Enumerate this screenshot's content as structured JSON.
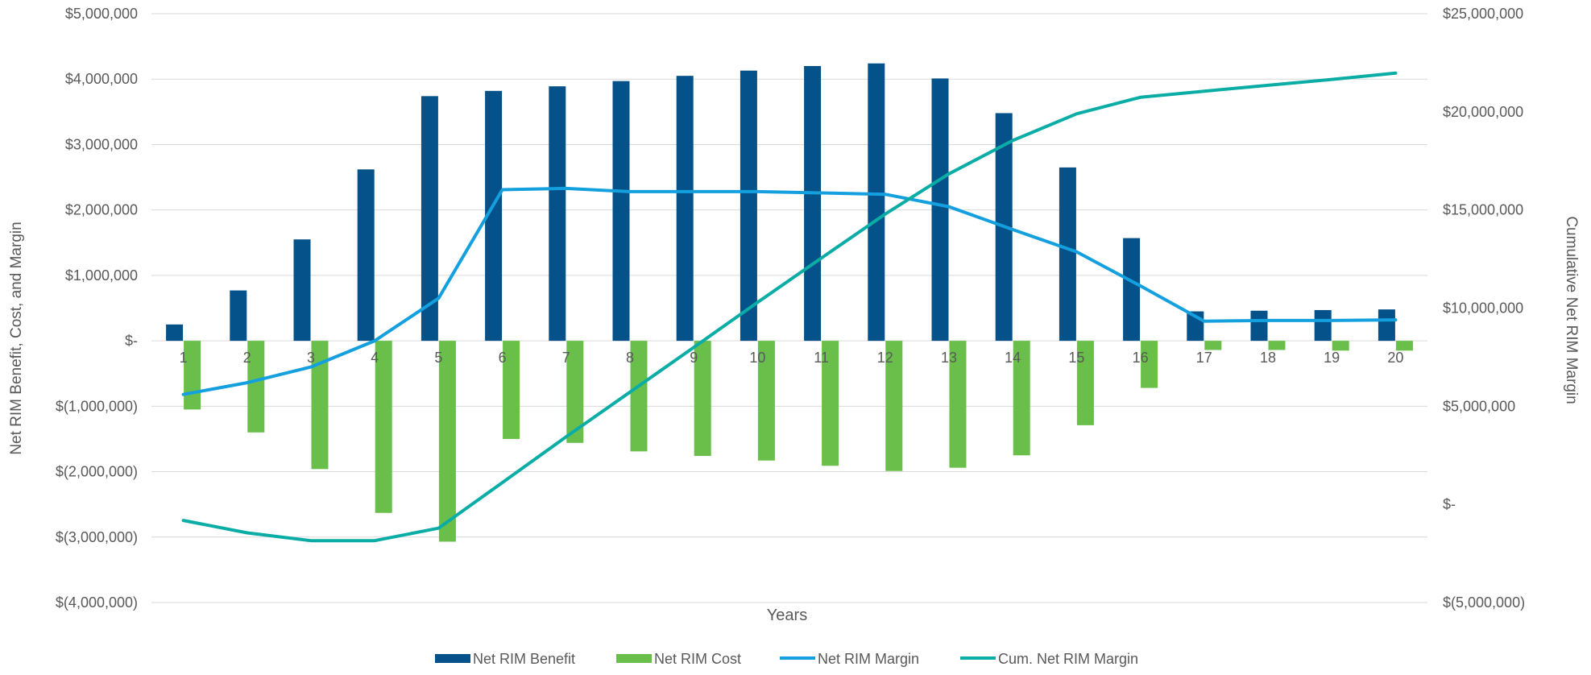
{
  "chart_data": {
    "type": "bar",
    "title": "",
    "xlabel": "Years",
    "ylabel": "Net RIM Benefit, Cost, and Margin",
    "y2label": "Cumulative Net RIM Margin",
    "categories": [
      "1",
      "2",
      "3",
      "4",
      "5",
      "6",
      "7",
      "8",
      "9",
      "10",
      "11",
      "12",
      "13",
      "14",
      "15",
      "16",
      "17",
      "18",
      "19",
      "20"
    ],
    "ylim": [
      -4000000,
      5000000
    ],
    "y2lim": [
      -5000000,
      25000000
    ],
    "y_ticks": [
      {
        "value": 5000000,
        "label": "$5,000,000"
      },
      {
        "value": 4000000,
        "label": "$4,000,000"
      },
      {
        "value": 3000000,
        "label": "$3,000,000"
      },
      {
        "value": 2000000,
        "label": "$2,000,000"
      },
      {
        "value": 1000000,
        "label": "$1,000,000"
      },
      {
        "value": 0,
        "label": "$-"
      },
      {
        "value": -1000000,
        "label": "$(1,000,000)"
      },
      {
        "value": -2000000,
        "label": "$(2,000,000)"
      },
      {
        "value": -3000000,
        "label": "$(3,000,000)"
      },
      {
        "value": -4000000,
        "label": "$(4,000,000)"
      }
    ],
    "y2_ticks": [
      {
        "value": 25000000,
        "label": "$25,000,000"
      },
      {
        "value": 20000000,
        "label": "$20,000,000"
      },
      {
        "value": 15000000,
        "label": "$15,000,000"
      },
      {
        "value": 10000000,
        "label": "$10,000,000"
      },
      {
        "value": 5000000,
        "label": "$5,000,000"
      },
      {
        "value": 0,
        "label": "$-"
      },
      {
        "value": -5000000,
        "label": "$(5,000,000)"
      }
    ],
    "grid": true,
    "legend_position": "bottom",
    "series": [
      {
        "name": "Net RIM Benefit",
        "type": "bar",
        "axis": "left",
        "color": "#05528a",
        "values": [
          250000,
          770000,
          1550000,
          2620000,
          3740000,
          3820000,
          3890000,
          3970000,
          4050000,
          4130000,
          4200000,
          4240000,
          4010000,
          3480000,
          2650000,
          1570000,
          450000,
          460000,
          470000,
          480000
        ]
      },
      {
        "name": "Net RIM Cost",
        "type": "bar",
        "axis": "left",
        "color": "#6abf4b",
        "values": [
          -1050000,
          -1400000,
          -1960000,
          -2630000,
          -3070000,
          -1500000,
          -1560000,
          -1690000,
          -1760000,
          -1830000,
          -1910000,
          -1990000,
          -1940000,
          -1750000,
          -1290000,
          -720000,
          -140000,
          -140000,
          -150000,
          -150000
        ]
      },
      {
        "name": "Net RIM Margin",
        "type": "line",
        "axis": "left",
        "color": "#14a0de",
        "values": [
          -820000,
          -640000,
          -400000,
          0,
          650000,
          2310000,
          2330000,
          2280000,
          2280000,
          2280000,
          2260000,
          2240000,
          2050000,
          1700000,
          1360000,
          840000,
          300000,
          310000,
          310000,
          320000
        ]
      },
      {
        "name": "Cum. Net RIM Margin",
        "type": "line",
        "axis": "right",
        "color": "#0aada5",
        "values": [
          -820000,
          -1450000,
          -1850000,
          -1850000,
          -1210000,
          1110000,
          3440000,
          5720000,
          8000000,
          10290000,
          12550000,
          14790000,
          16840000,
          18540000,
          19900000,
          20740000,
          21050000,
          21350000,
          21650000,
          21970000
        ]
      }
    ]
  }
}
